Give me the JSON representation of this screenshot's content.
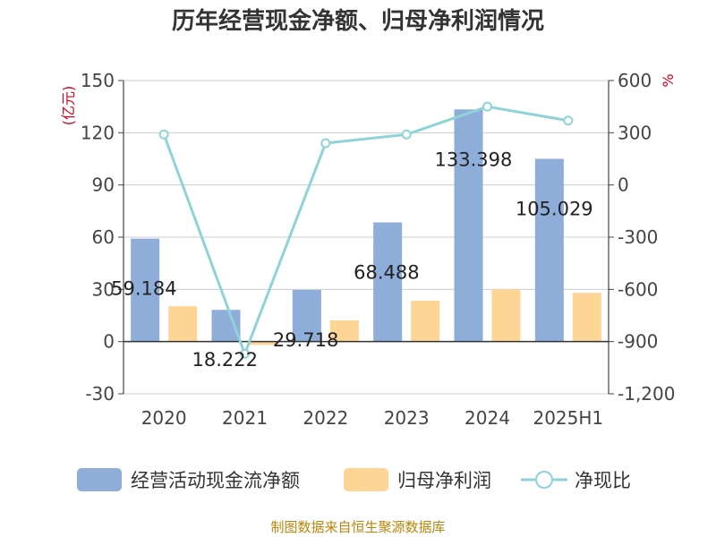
{
  "chart_data": {
    "type": "bar",
    "title": "历年经营现金净额、归母净利润情况",
    "categories": [
      "2020",
      "2021",
      "2022",
      "2023",
      "2024",
      "2025H1"
    ],
    "y_left": {
      "unit": "(亿元)",
      "ylim": [
        -30,
        150
      ],
      "ticks": [
        -30,
        0,
        30,
        60,
        90,
        120,
        150
      ]
    },
    "y_right": {
      "unit": "%",
      "ylim": [
        -1200,
        600
      ],
      "ticks": [
        -1200,
        -900,
        -600,
        -300,
        0,
        300,
        600
      ],
      "tick_labels": [
        "-1,200",
        "-900",
        "-600",
        "-300",
        "0",
        "300",
        "600"
      ]
    },
    "series": [
      {
        "name": "经营活动现金流净额",
        "kind": "bar",
        "axis": "left",
        "color": "#8eadd9",
        "values": [
          59.184,
          18.222,
          29.718,
          68.488,
          133.398,
          105.029
        ],
        "labels": [
          "59.184",
          "18.222",
          "29.718",
          "68.488",
          "133.398",
          "105.029"
        ]
      },
      {
        "name": "归母净利润",
        "kind": "bar",
        "axis": "left",
        "color": "#fdd594",
        "values": [
          20.3,
          -1.9,
          12.2,
          23.5,
          30.0,
          28.0
        ]
      },
      {
        "name": "净现比",
        "kind": "line",
        "axis": "right",
        "color": "#8fd3d8",
        "values": [
          290,
          -970,
          240,
          290,
          450,
          370
        ]
      }
    ],
    "grid": true,
    "legend": "bottom"
  },
  "footer": {
    "source": "制图数据来自恒生聚源数据库"
  }
}
